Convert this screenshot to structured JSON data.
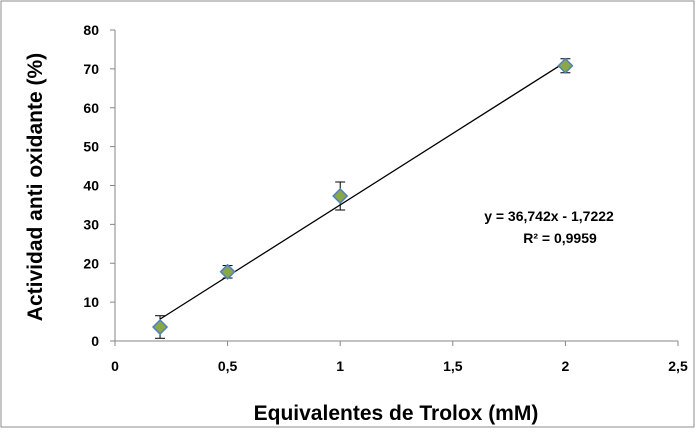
{
  "chart_data": {
    "type": "scatter",
    "xlabel": "Equivalentes de Trolox (mM)",
    "ylabel": "Actividad anti oxidante (%)",
    "xlim": [
      0,
      2.5
    ],
    "ylim": [
      0,
      80
    ],
    "x_ticks": [
      0,
      0.5,
      1,
      1.5,
      2,
      2.5
    ],
    "x_tick_labels": [
      "0",
      "0,5",
      "1",
      "1,5",
      "2",
      "2,5"
    ],
    "y_ticks": [
      0,
      10,
      20,
      30,
      40,
      50,
      60,
      70,
      80
    ],
    "y_tick_labels": [
      "0",
      "10",
      "20",
      "30",
      "40",
      "50",
      "60",
      "70",
      "80"
    ],
    "grid": false,
    "points": [
      {
        "x": 0.2,
        "y": 3.6,
        "err": 2.9
      },
      {
        "x": 0.5,
        "y": 17.8,
        "err": 1.6
      },
      {
        "x": 1.0,
        "y": 37.3,
        "err": 3.6
      },
      {
        "x": 2.0,
        "y": 70.8,
        "err": 1.8
      }
    ],
    "trendline": {
      "slope": 36.742,
      "intercept": -1.7222,
      "x_start": 0.2,
      "x_end": 2.0
    },
    "equation_label": "y = 36,742x - 1,7222",
    "r2_label": "R² = 0,9959",
    "marker_color": "#8aa848",
    "marker_edge_color": "#4f81bd"
  }
}
